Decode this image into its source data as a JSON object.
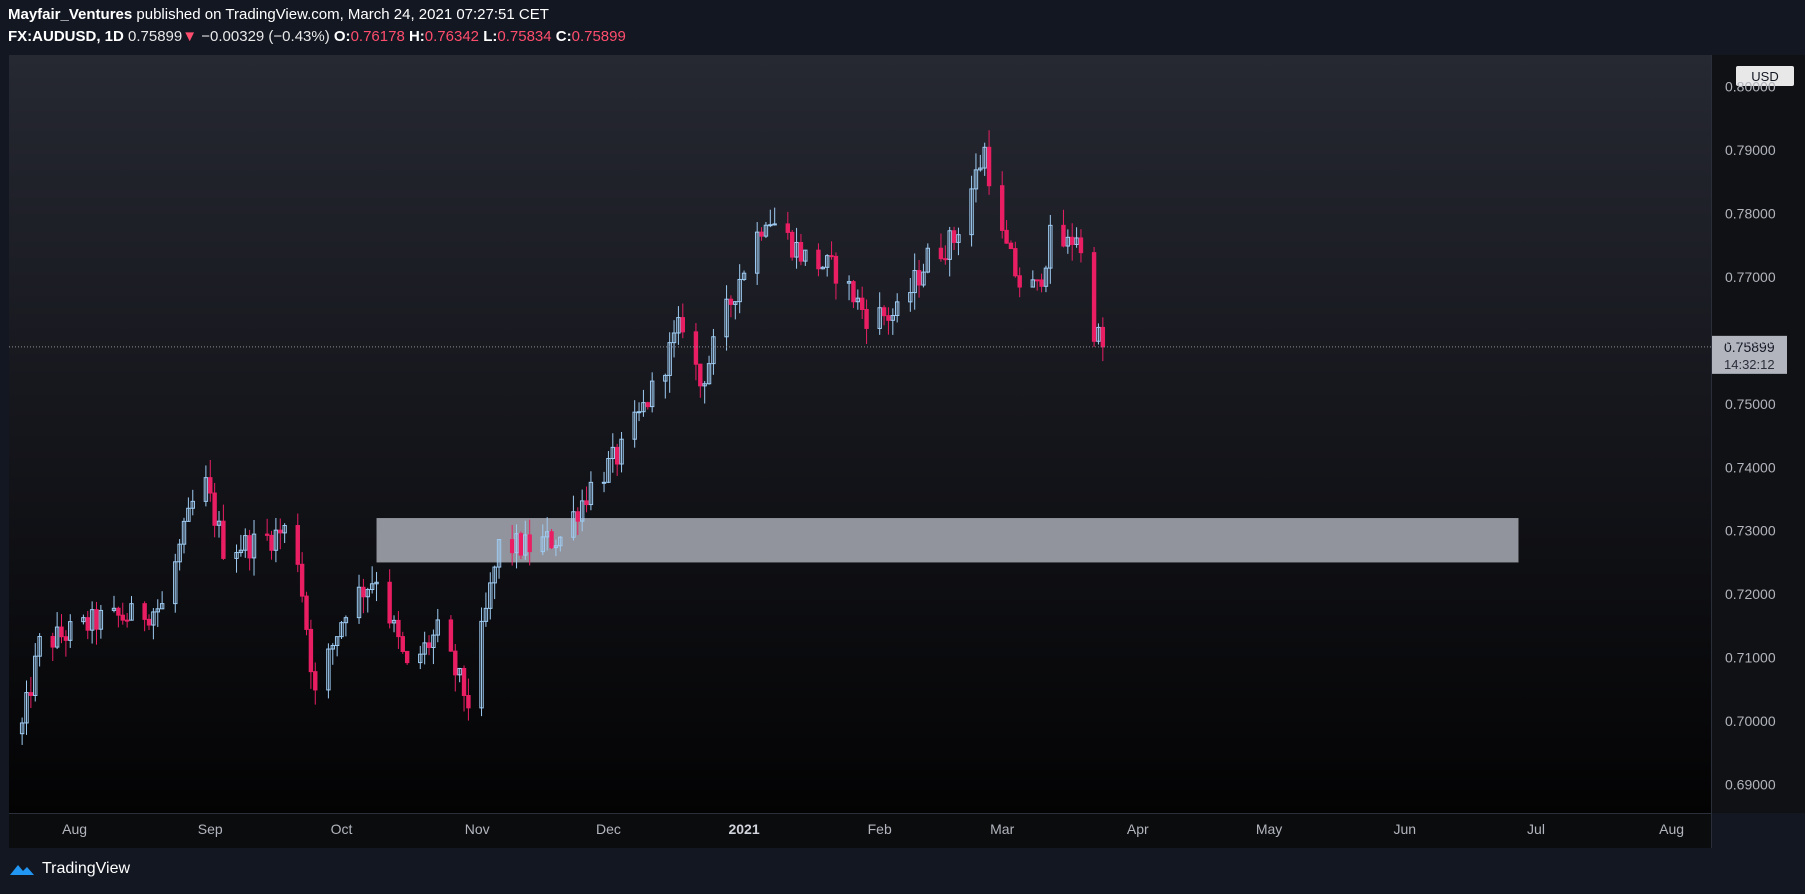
{
  "header": {
    "author": "Mayfair_Ventures",
    "published_text": " published on TradingView.com, March 24, 2021 07:27:51 CET",
    "symbol": "FX:AUDUSD, 1D",
    "last": "0.75899",
    "arrow": "▼",
    "change": "−0.00329 (−0.43%)",
    "o_label": "O:",
    "o_value": "0.76178",
    "h_label": "H:",
    "h_value": "0.76342",
    "l_label": "L:",
    "l_value": "0.75834",
    "c_label": "C:",
    "c_value": "0.75899"
  },
  "footer": {
    "brand": "TradingView"
  },
  "colors": {
    "background": "#131722",
    "up": "#9ecbf2",
    "down": "#e91e63",
    "zone": "#b2b5be",
    "axis_text": "#b2b5be"
  },
  "chart_data": {
    "type": "candlestick",
    "currency": "USD",
    "price_ticks": [
      "0.80000",
      "0.79000",
      "0.78000",
      "0.77000",
      "0.76000",
      "0.75000",
      "0.74000",
      "0.73000",
      "0.72000",
      "0.71000",
      "0.70000",
      "0.69000"
    ],
    "x_labels": [
      {
        "label": "Aug",
        "date": "2020-08-01"
      },
      {
        "label": "Sep",
        "date": "2020-09-01"
      },
      {
        "label": "Oct",
        "date": "2020-10-01"
      },
      {
        "label": "Nov",
        "date": "2020-11-01"
      },
      {
        "label": "Dec",
        "date": "2020-12-01"
      },
      {
        "label": "2021",
        "date": "2021-01-01",
        "bold": true
      },
      {
        "label": "Feb",
        "date": "2021-02-01"
      },
      {
        "label": "Mar",
        "date": "2021-03-01"
      },
      {
        "label": "Apr",
        "date": "2021-04-01"
      },
      {
        "label": "May",
        "date": "2021-05-01"
      },
      {
        "label": "Jun",
        "date": "2021-06-01"
      },
      {
        "label": "Jul",
        "date": "2021-07-01"
      },
      {
        "label": "Aug",
        "date": "2021-08-01"
      }
    ],
    "x_range": [
      "2020-07-17",
      "2021-08-10"
    ],
    "y_range": [
      0.6855,
      0.805
    ],
    "last_price": {
      "value": 0.75899,
      "label": "0.75899",
      "countdown": "14:32:12"
    },
    "zone": {
      "x_from": "2020-10-09",
      "x_to": "2021-06-27",
      "y_low": 0.725,
      "y_high": 0.732
    },
    "anchors": [
      [
        "2020-07-20",
        0.699
      ],
      [
        "2020-07-24",
        0.712
      ],
      [
        "2020-07-31",
        0.714
      ],
      [
        "2020-08-07",
        0.716
      ],
      [
        "2020-08-14",
        0.7165
      ],
      [
        "2020-08-21",
        0.718
      ],
      [
        "2020-08-28",
        0.734
      ],
      [
        "2020-08-31",
        0.737
      ],
      [
        "2020-09-04",
        0.7275
      ],
      [
        "2020-09-11",
        0.728
      ],
      [
        "2020-09-18",
        0.73
      ],
      [
        "2020-09-21",
        0.726
      ],
      [
        "2020-09-25",
        0.704
      ],
      [
        "2020-10-02",
        0.718
      ],
      [
        "2020-10-09",
        0.723
      ],
      [
        "2020-10-16",
        0.708
      ],
      [
        "2020-10-23",
        0.714
      ],
      [
        "2020-10-30",
        0.703
      ],
      [
        "2020-11-03",
        0.717
      ],
      [
        "2020-11-06",
        0.7275
      ],
      [
        "2020-11-13",
        0.7275
      ],
      [
        "2020-11-20",
        0.729
      ],
      [
        "2020-11-27",
        0.737
      ],
      [
        "2020-12-04",
        0.7425
      ],
      [
        "2020-12-11",
        0.752
      ],
      [
        "2020-12-18",
        0.763
      ],
      [
        "2020-12-22",
        0.753
      ],
      [
        "2020-12-31",
        0.77
      ],
      [
        "2021-01-06",
        0.78
      ],
      [
        "2021-01-15",
        0.773
      ],
      [
        "2021-01-22",
        0.771
      ],
      [
        "2021-01-29",
        0.764
      ],
      [
        "2021-02-05",
        0.764
      ],
      [
        "2021-02-12",
        0.773
      ],
      [
        "2021-02-18",
        0.776
      ],
      [
        "2021-02-25",
        0.79
      ],
      [
        "2021-03-01",
        0.776
      ],
      [
        "2021-03-05",
        0.769
      ],
      [
        "2021-03-09",
        0.768
      ],
      [
        "2021-03-12",
        0.776
      ],
      [
        "2021-03-16",
        0.775
      ],
      [
        "2021-03-18",
        0.777
      ],
      [
        "2021-03-22",
        0.762
      ],
      [
        "2021-03-24",
        0.75899
      ]
    ]
  }
}
